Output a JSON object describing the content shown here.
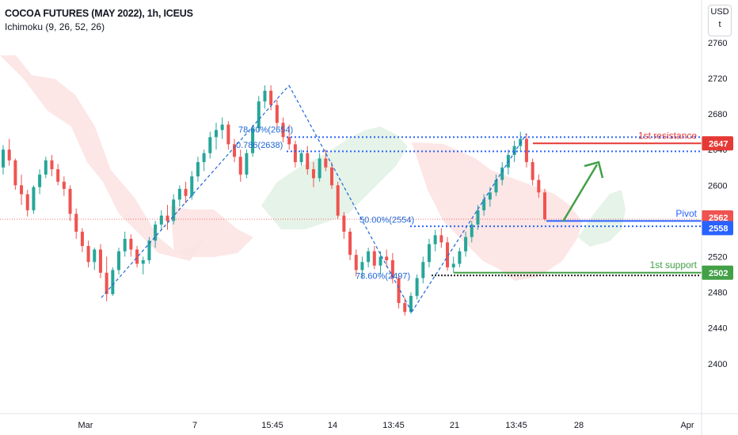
{
  "header": {
    "title": "COCOA FUTURES (MAY 2022), 1h, ICEUS",
    "indicator": "Ichimoku (9, 26, 52, 26)"
  },
  "currency_button": {
    "line1": "USD",
    "line2": "t"
  },
  "colors": {
    "bull": "#26a69a",
    "bear": "#ef5350",
    "resistance": "#e53935",
    "pivot": "#2962ff",
    "support": "#43a047",
    "fib": "#1e66d6",
    "cloud_red": "#fde3e3",
    "cloud_green": "#e3f2e6",
    "axis_text": "#131722",
    "arrow": "#43a047"
  },
  "chart_data": {
    "type": "candlestick",
    "y_axis": {
      "ticks": [
        2400,
        2440,
        2480,
        2520,
        2560,
        2600,
        2640,
        2680,
        2720,
        2760
      ],
      "range": [
        2344,
        2790
      ]
    },
    "x_axis": {
      "ticks": [
        "Mar",
        "7",
        "15:45",
        "14",
        "13:45",
        "21",
        "13:45",
        "28",
        "Apr"
      ]
    },
    "levels": [
      {
        "name": "1st resistance",
        "value": 2647,
        "label": "2647"
      },
      {
        "name": "Pivot",
        "value": 2558,
        "label": "2558"
      },
      {
        "name": "1st support",
        "value": 2502,
        "label": "2502"
      }
    ],
    "last_price": {
      "value": 2562,
      "label": "2562"
    },
    "fib_labels": [
      "78.60%(2654)",
      "0.786(2638)",
      "50.00%(2554)",
      "78.60%(2497)"
    ],
    "candles_ohlc": [
      [
        2620,
        2645,
        2612,
        2640
      ],
      [
        2640,
        2652,
        2622,
        2628
      ],
      [
        2628,
        2630,
        2595,
        2600
      ],
      [
        2600,
        2612,
        2578,
        2590
      ],
      [
        2590,
        2595,
        2565,
        2572
      ],
      [
        2572,
        2600,
        2568,
        2598
      ],
      [
        2598,
        2618,
        2590,
        2612
      ],
      [
        2612,
        2632,
        2608,
        2628
      ],
      [
        2628,
        2634,
        2610,
        2618
      ],
      [
        2618,
        2624,
        2600,
        2604
      ],
      [
        2604,
        2610,
        2588,
        2596
      ],
      [
        2596,
        2600,
        2560,
        2568
      ],
      [
        2568,
        2574,
        2540,
        2548
      ],
      [
        2548,
        2552,
        2525,
        2532
      ],
      [
        2532,
        2538,
        2508,
        2514
      ],
      [
        2514,
        2530,
        2505,
        2528
      ],
      [
        2528,
        2534,
        2496,
        2502
      ],
      [
        2502,
        2520,
        2470,
        2478
      ],
      [
        2478,
        2508,
        2476,
        2505
      ],
      [
        2505,
        2530,
        2500,
        2526
      ],
      [
        2526,
        2548,
        2520,
        2540
      ],
      [
        2540,
        2545,
        2520,
        2528
      ],
      [
        2528,
        2532,
        2508,
        2512
      ],
      [
        2512,
        2520,
        2500,
        2516
      ],
      [
        2516,
        2542,
        2512,
        2538
      ],
      [
        2538,
        2560,
        2530,
        2556
      ],
      [
        2556,
        2572,
        2550,
        2566
      ],
      [
        2566,
        2578,
        2550,
        2560
      ],
      [
        2560,
        2590,
        2556,
        2584
      ],
      [
        2584,
        2600,
        2576,
        2596
      ],
      [
        2596,
        2604,
        2580,
        2588
      ],
      [
        2588,
        2616,
        2584,
        2610
      ],
      [
        2610,
        2632,
        2604,
        2626
      ],
      [
        2626,
        2640,
        2616,
        2636
      ],
      [
        2636,
        2660,
        2630,
        2654
      ],
      [
        2654,
        2670,
        2640,
        2662
      ],
      [
        2662,
        2676,
        2652,
        2668
      ],
      [
        2668,
        2672,
        2640,
        2646
      ],
      [
        2646,
        2652,
        2626,
        2632
      ],
      [
        2632,
        2640,
        2604,
        2612
      ],
      [
        2612,
        2640,
        2608,
        2636
      ],
      [
        2636,
        2668,
        2632,
        2664
      ],
      [
        2664,
        2700,
        2660,
        2694
      ],
      [
        2694,
        2712,
        2686,
        2706
      ],
      [
        2706,
        2712,
        2684,
        2690
      ],
      [
        2690,
        2696,
        2664,
        2670
      ],
      [
        2670,
        2676,
        2648,
        2654
      ],
      [
        2654,
        2668,
        2640,
        2646
      ],
      [
        2646,
        2650,
        2620,
        2626
      ],
      [
        2626,
        2640,
        2622,
        2636
      ],
      [
        2636,
        2644,
        2612,
        2618
      ],
      [
        2618,
        2626,
        2598,
        2608
      ],
      [
        2608,
        2636,
        2604,
        2630
      ],
      [
        2630,
        2640,
        2616,
        2620
      ],
      [
        2620,
        2626,
        2596,
        2600
      ],
      [
        2600,
        2604,
        2562,
        2566
      ],
      [
        2566,
        2570,
        2540,
        2548
      ],
      [
        2548,
        2552,
        2516,
        2522
      ],
      [
        2522,
        2528,
        2498,
        2505
      ],
      [
        2505,
        2520,
        2496,
        2514
      ],
      [
        2514,
        2530,
        2508,
        2526
      ],
      [
        2526,
        2532,
        2506,
        2510
      ],
      [
        2510,
        2526,
        2500,
        2520
      ],
      [
        2520,
        2528,
        2508,
        2516
      ],
      [
        2516,
        2524,
        2490,
        2496
      ],
      [
        2496,
        2500,
        2462,
        2468
      ],
      [
        2468,
        2474,
        2454,
        2458
      ],
      [
        2458,
        2480,
        2456,
        2476
      ],
      [
        2476,
        2500,
        2472,
        2496
      ],
      [
        2496,
        2520,
        2490,
        2514
      ],
      [
        2514,
        2540,
        2508,
        2534
      ],
      [
        2534,
        2550,
        2526,
        2544
      ],
      [
        2544,
        2552,
        2530,
        2536
      ],
      [
        2536,
        2542,
        2504,
        2508
      ],
      [
        2508,
        2520,
        2502,
        2512
      ],
      [
        2512,
        2530,
        2508,
        2526
      ],
      [
        2526,
        2548,
        2520,
        2542
      ],
      [
        2542,
        2560,
        2536,
        2556
      ],
      [
        2556,
        2578,
        2550,
        2572
      ],
      [
        2572,
        2590,
        2566,
        2584
      ],
      [
        2584,
        2598,
        2576,
        2592
      ],
      [
        2592,
        2612,
        2588,
        2606
      ],
      [
        2606,
        2626,
        2600,
        2620
      ],
      [
        2620,
        2640,
        2612,
        2634
      ],
      [
        2634,
        2650,
        2626,
        2644
      ],
      [
        2644,
        2660,
        2638,
        2652
      ],
      [
        2652,
        2658,
        2620,
        2626
      ],
      [
        2626,
        2630,
        2600,
        2606
      ],
      [
        2606,
        2612,
        2586,
        2592
      ],
      [
        2592,
        2596,
        2560,
        2562
      ]
    ]
  },
  "annotations": {
    "resistance_label": "1st resistance",
    "pivot_label": "Pivot",
    "support_label": "1st support"
  }
}
